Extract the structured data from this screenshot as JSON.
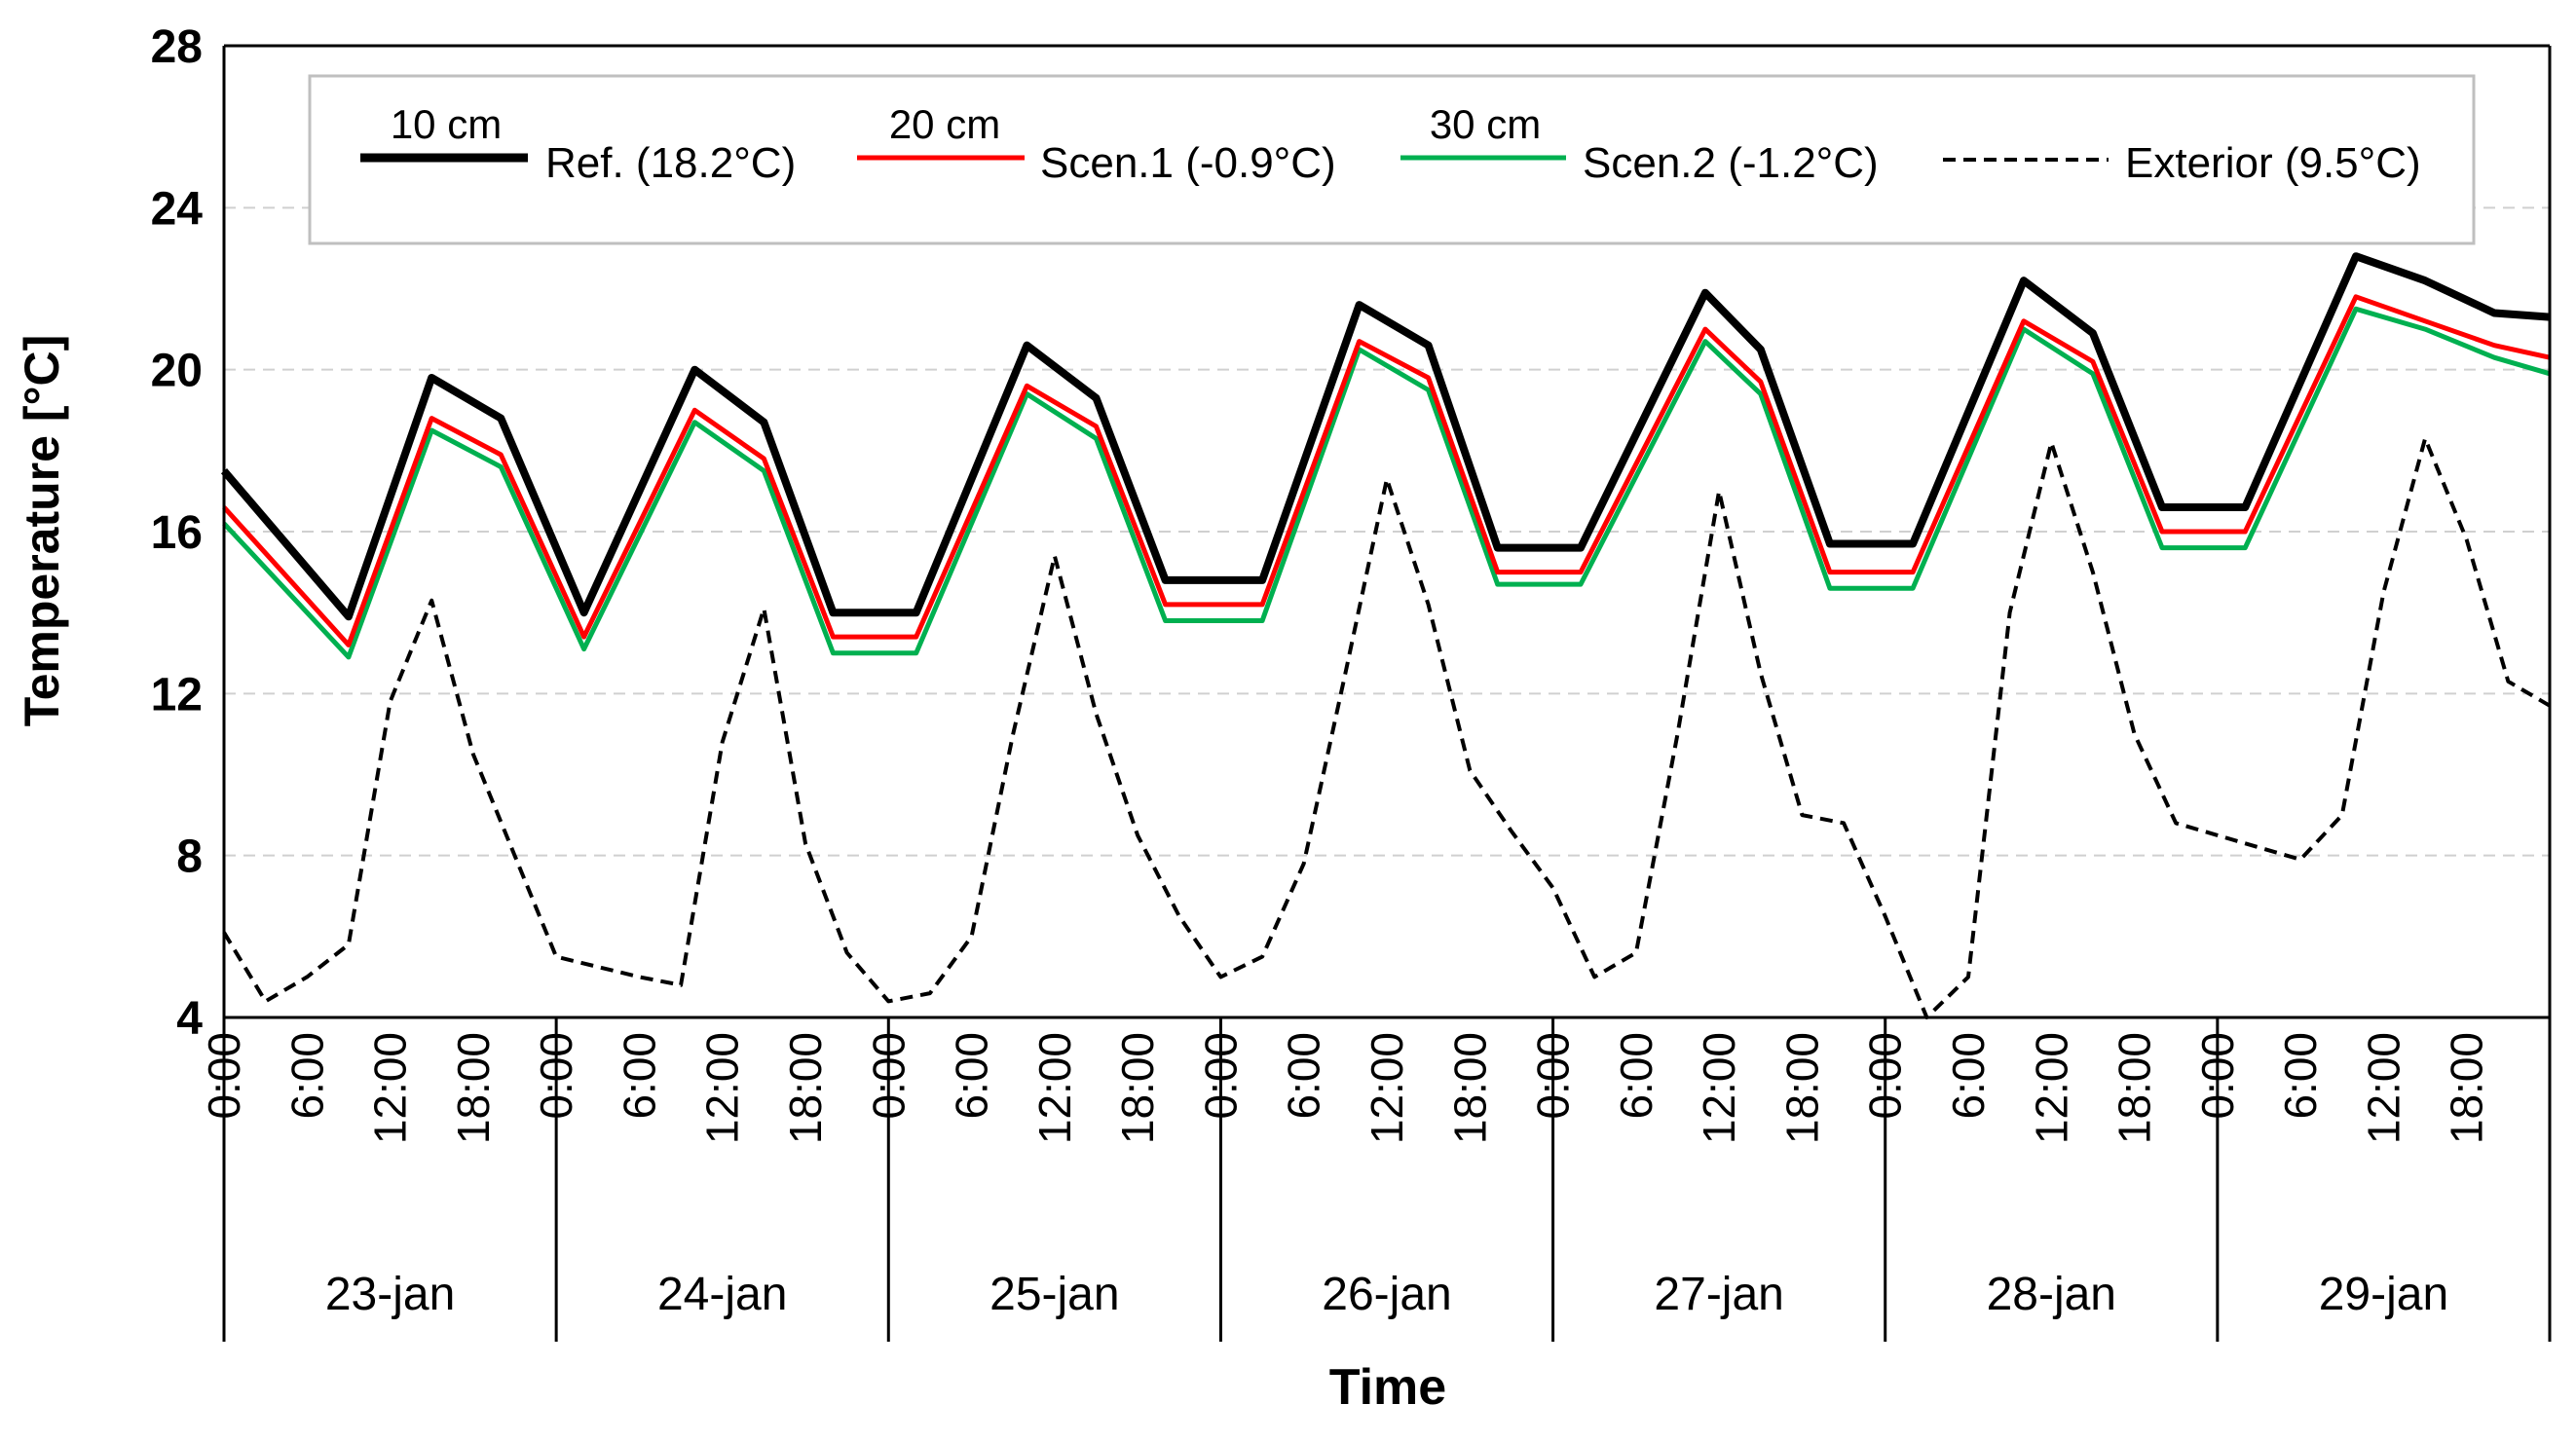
{
  "chart_data": {
    "type": "line",
    "title": "",
    "xlabel": "Time",
    "ylabel": "Temperature [°C]",
    "ylim": [
      4,
      28
    ],
    "yticks": [
      "4",
      "8",
      "12",
      "16",
      "20",
      "24",
      "28"
    ],
    "days": [
      "23-jan",
      "24-jan",
      "25-jan",
      "26-jan",
      "27-jan",
      "28-jan",
      "29-jan"
    ],
    "hour_ticks": [
      "0:00",
      "6:00",
      "12:00",
      "18:00"
    ],
    "x_unit": "hours since 23-jan 0:00",
    "xlim": [
      0,
      168
    ],
    "grid": true,
    "legend_position": "top",
    "legend": [
      {
        "thickness_label": "10 cm",
        "name": "Ref. (18.2°C)",
        "color": "#000000",
        "dash": "solid"
      },
      {
        "thickness_label": "20 cm",
        "name": "Scen.1 (-0.9°C)",
        "color": "#ff0000",
        "dash": "solid"
      },
      {
        "thickness_label": "30 cm",
        "name": "Scen.2 (-1.2°C)",
        "color": "#00b050",
        "dash": "solid"
      },
      {
        "thickness_label": "",
        "name": "Exterior (9.5°C)",
        "color": "#000000",
        "dash": "dashed"
      }
    ],
    "series": [
      {
        "name": "Ref. (18.2°C)",
        "color": "#000000",
        "dash": "solid",
        "x": [
          0,
          9,
          15,
          20,
          26,
          34,
          39,
          44,
          50,
          58,
          63,
          68,
          75,
          82,
          87,
          92,
          98,
          107,
          111,
          116,
          122,
          130,
          135,
          140,
          146,
          154,
          159,
          164,
          168
        ],
        "y": [
          17.5,
          13.9,
          19.8,
          18.8,
          14.0,
          20.0,
          18.7,
          14.0,
          14.0,
          20.6,
          19.3,
          14.8,
          14.8,
          21.6,
          20.6,
          15.6,
          15.6,
          21.9,
          20.5,
          15.7,
          15.7,
          22.2,
          20.9,
          16.6,
          16.6,
          22.8,
          22.2,
          21.4,
          21.3
        ]
      },
      {
        "name": "Scen.1 (-0.9°C)",
        "color": "#ff0000",
        "dash": "solid",
        "x": [
          0,
          9,
          15,
          20,
          26,
          34,
          39,
          44,
          50,
          58,
          63,
          68,
          75,
          82,
          87,
          92,
          98,
          107,
          111,
          116,
          122,
          130,
          135,
          140,
          146,
          154,
          159,
          164,
          168
        ],
        "y": [
          16.6,
          13.2,
          18.8,
          17.9,
          13.4,
          19.0,
          17.8,
          13.4,
          13.4,
          19.6,
          18.6,
          14.2,
          14.2,
          20.7,
          19.8,
          15.0,
          15.0,
          21.0,
          19.7,
          15.0,
          15.0,
          21.2,
          20.2,
          16.0,
          16.0,
          21.8,
          21.2,
          20.6,
          20.3
        ]
      },
      {
        "name": "Scen.2 (-1.2°C)",
        "color": "#00b050",
        "dash": "solid",
        "x": [
          0,
          9,
          15,
          20,
          26,
          34,
          39,
          44,
          50,
          58,
          63,
          68,
          75,
          82,
          87,
          92,
          98,
          107,
          111,
          116,
          122,
          130,
          135,
          140,
          146,
          154,
          159,
          164,
          168
        ],
        "y": [
          16.2,
          12.9,
          18.5,
          17.6,
          13.1,
          18.7,
          17.5,
          13.0,
          13.0,
          19.4,
          18.3,
          13.8,
          13.8,
          20.5,
          19.5,
          14.7,
          14.7,
          20.7,
          19.4,
          14.6,
          14.6,
          21.0,
          19.9,
          15.6,
          15.6,
          21.5,
          21.0,
          20.3,
          19.9
        ]
      },
      {
        "name": "Exterior (9.5°C)",
        "color": "#000000",
        "dash": "dashed",
        "x": [
          0,
          3,
          6,
          9,
          12,
          15,
          18,
          21,
          24,
          30,
          33,
          36,
          39,
          42,
          45,
          48,
          51,
          54,
          57,
          60,
          63,
          66,
          69,
          72,
          75,
          78,
          81,
          84,
          87,
          90,
          93,
          96,
          99,
          102,
          105,
          108,
          111,
          114,
          117,
          120,
          123,
          126,
          129,
          132,
          135,
          138,
          141,
          144,
          147,
          150,
          153,
          156,
          159,
          162,
          165,
          168
        ],
        "y": [
          6.1,
          4.4,
          5.0,
          5.8,
          11.8,
          14.3,
          10.5,
          8.0,
          5.5,
          5.0,
          4.8,
          10.8,
          14.1,
          8.3,
          5.6,
          4.4,
          4.6,
          6.0,
          11.0,
          15.4,
          11.5,
          8.5,
          6.5,
          5.0,
          5.5,
          7.8,
          12.5,
          17.3,
          14.2,
          10.1,
          8.6,
          7.2,
          5.0,
          5.6,
          11.0,
          17.0,
          12.5,
          9.0,
          8.8,
          6.5,
          4.0,
          5.0,
          14.0,
          18.2,
          15.0,
          11.0,
          8.8,
          8.5,
          8.2,
          7.9,
          9.0,
          14.5,
          18.3,
          15.8,
          12.3,
          11.7
        ]
      }
    ]
  }
}
